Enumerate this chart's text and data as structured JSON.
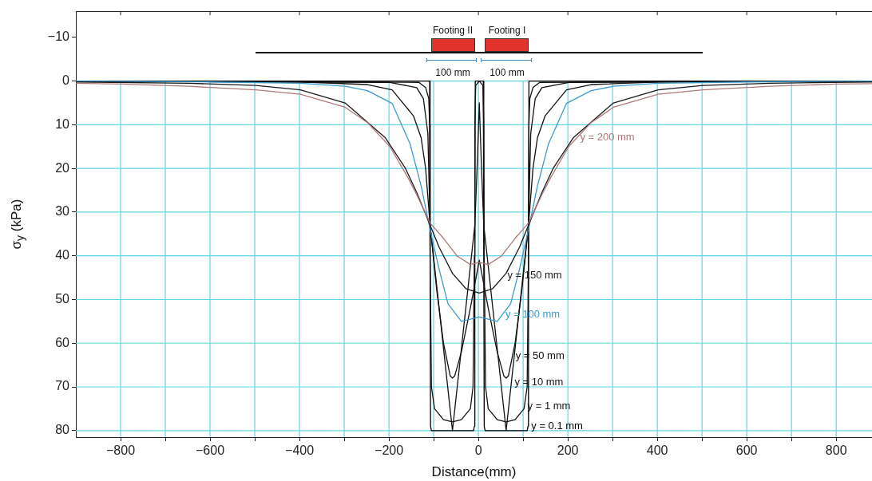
{
  "chart_data": {
    "type": "line",
    "xlabel": "Distance(mm)",
    "ylabel": "σ$_{y}$ (kPa)",
    "xlim": [
      -900,
      880
    ],
    "ylim": [
      81.5,
      -16
    ],
    "xticks": [
      -800,
      {
        "value": -700,
        "label": null
      },
      -600,
      {
        "value": -500,
        "label": null
      },
      -400,
      {
        "value": -300,
        "label": null
      },
      -200,
      {
        "value": -100,
        "label": null
      },
      0,
      {
        "value": 100,
        "label": null
      },
      200,
      {
        "value": 300,
        "label": null
      },
      400,
      {
        "value": 500,
        "label": null
      },
      600,
      {
        "value": 700,
        "label": null
      },
      800
    ],
    "yticks": [
      -10,
      0,
      10,
      20,
      30,
      40,
      50,
      60,
      70,
      80
    ],
    "grid": true,
    "legend": false,
    "annotations": [
      "Footing II",
      "Footing I",
      "100 mm",
      "100 mm"
    ],
    "series": [
      {
        "name": "y = 200 mm",
        "color": "#b07878",
        "x": [
          -900,
          -798,
          -648,
          -498,
          -398,
          -298,
          -248,
          -198,
          -158,
          -138,
          -108,
          -78,
          -48,
          -18,
          2,
          22,
          52,
          82,
          112,
          142,
          162,
          202,
          252,
          302,
          402,
          502,
          652,
          802,
          880
        ],
        "values": [
          0.5,
          0.7,
          1.2,
          2,
          3,
          6,
          9.5,
          15,
          22,
          26,
          32.5,
          36,
          40,
          42,
          41.5,
          42,
          40,
          36,
          32.5,
          26,
          22,
          15,
          9.5,
          6,
          3,
          2,
          1.2,
          0.7,
          0.6
        ]
      },
      {
        "name": "y = 150 mm",
        "color": "#1a1a1a",
        "x": [
          -900,
          -648,
          -498,
          -398,
          -298,
          -208,
          -163,
          -138,
          -108,
          -88,
          -58,
          -28,
          2,
          32,
          62,
          92,
          112,
          142,
          167,
          212,
          302,
          402,
          502,
          652,
          880
        ],
        "values": [
          0.2,
          0.5,
          1,
          2,
          5,
          13,
          20,
          25.5,
          33,
          38,
          44,
          47.5,
          48.5,
          47.5,
          44,
          38,
          33,
          25.5,
          20,
          13,
          5,
          2,
          1,
          0.5,
          0.2
        ]
      },
      {
        "name": "y = 100 mm",
        "color": "#3a9ad0",
        "x": [
          -900,
          -598,
          -398,
          -298,
          -248,
          -193,
          -153,
          -128,
          -108,
          -88,
          -68,
          -38,
          2,
          42,
          72,
          92,
          112,
          132,
          157,
          197,
          252,
          302,
          402,
          602,
          880
        ],
        "values": [
          0,
          0.2,
          0.5,
          1.2,
          2.2,
          5.1,
          14.3,
          24,
          34,
          43,
          51,
          55,
          54,
          55,
          51,
          43,
          34,
          24,
          14.3,
          5.1,
          2.2,
          1.2,
          0.5,
          0.2,
          0
        ]
      },
      {
        "name": "y = 50 mm",
        "color": "#111111",
        "x": [
          -900,
          -398,
          -248,
          -193,
          -145,
          -128,
          -118,
          -108,
          -93,
          -78,
          -63,
          -58,
          -53,
          -38,
          -18,
          2,
          22,
          42,
          57,
          62,
          67,
          82,
          97,
          112,
          122,
          132,
          149,
          197,
          252,
          402,
          880
        ],
        "values": [
          0,
          0.2,
          0.8,
          2,
          8,
          13,
          20,
          33,
          48,
          60,
          67.5,
          68,
          67.5,
          62,
          52,
          41,
          52,
          62,
          67.5,
          68,
          67.5,
          60,
          48,
          33,
          20,
          13,
          8,
          2,
          0.8,
          0.2,
          0
        ]
      },
      {
        "name": "y = 10 mm",
        "color": "#111111",
        "x": [
          -900,
          -198,
          -138,
          -123,
          -113,
          -108,
          -58,
          -8,
          -3,
          2,
          7,
          12,
          62,
          112,
          117,
          127,
          142,
          202,
          880
        ],
        "values": [
          0,
          0.3,
          1.5,
          4,
          12,
          33,
          80,
          33,
          20,
          5,
          20,
          33,
          80,
          33,
          12,
          4,
          1.5,
          0.3,
          0
        ]
      },
      {
        "name": "y = 1 mm",
        "color": "#111111",
        "x": [
          -900,
          -133,
          -118,
          -111,
          -109,
          -108,
          -105,
          -98,
          -78,
          -58,
          -38,
          -18,
          -12,
          -9,
          -8,
          -6,
          2,
          10,
          12,
          13,
          16,
          22,
          42,
          62,
          82,
          102,
          109,
          112,
          113,
          115,
          122,
          137,
          880
        ],
        "values": [
          0,
          0.3,
          1.5,
          4,
          10,
          40,
          70,
          75,
          77.5,
          78,
          77.5,
          75,
          70,
          40,
          10,
          1,
          0,
          1,
          10,
          40,
          70,
          75,
          77.5,
          78,
          77.5,
          75,
          70,
          40,
          10,
          4,
          1.5,
          0.3,
          0
        ]
      },
      {
        "name": "y = 0.1 mm",
        "color": "#000000",
        "x": [
          -900,
          -109,
          -108,
          -107,
          -105,
          -11,
          -9,
          -8,
          -7,
          2,
          11,
          12,
          13,
          15,
          109,
          111,
          112,
          113,
          880
        ],
        "values": [
          0,
          0,
          40,
          79,
          80,
          80,
          79,
          40,
          0,
          0,
          0,
          40,
          79,
          80,
          80,
          79,
          40,
          0,
          0
        ]
      }
    ]
  }
}
